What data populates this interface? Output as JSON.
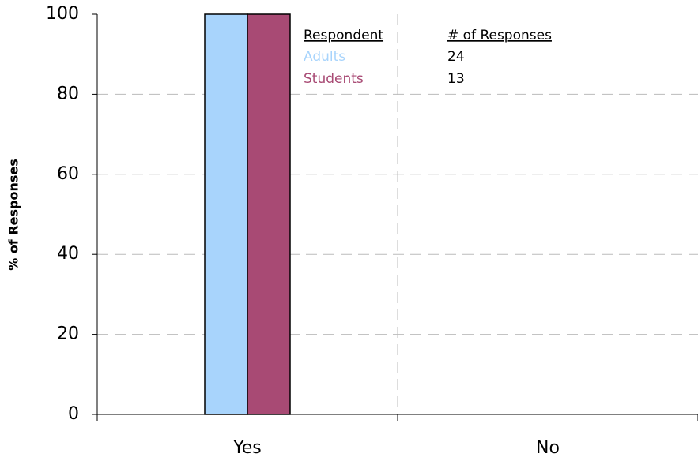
{
  "chart_data": {
    "type": "bar",
    "y_label": "% of Responses",
    "categories": [
      "Yes",
      "No"
    ],
    "series": [
      {
        "name": "Adults",
        "color": "#a8d4fc",
        "values": [
          100,
          0
        ]
      },
      {
        "name": "Students",
        "color": "#a84a74",
        "values": [
          100,
          0
        ]
      }
    ],
    "ylim": [
      0,
      100
    ],
    "yticks": [
      0,
      20,
      40,
      60,
      80,
      100
    ],
    "grid": true,
    "legend_headers": [
      "Respondent",
      "# of Responses"
    ],
    "legend_counts": [
      "24",
      "13"
    ]
  }
}
